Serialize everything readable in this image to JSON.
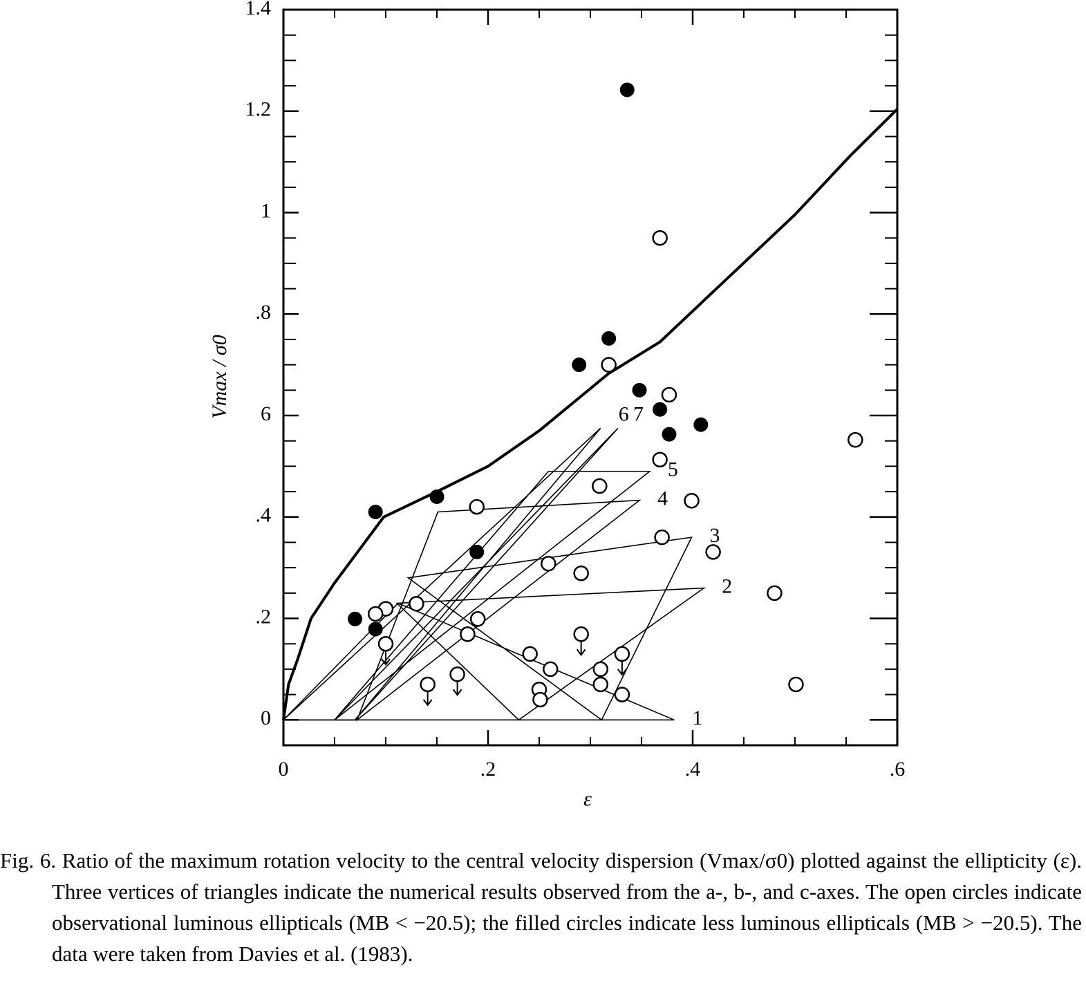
{
  "chart_data": {
    "type": "scatter",
    "xlabel": "ε",
    "ylabel": "Vmax / σ0",
    "xlim": [
      0,
      0.6
    ],
    "ylim": [
      -0.05,
      1.4
    ],
    "xticks": [
      0,
      {
        "value": 0.2,
        "label": ".2"
      },
      {
        "value": 0.4,
        "label": ".4"
      },
      {
        "value": 0.6,
        "label": ".6"
      }
    ],
    "yticks": [
      0,
      {
        "value": 0.2,
        "label": ".2"
      },
      {
        "value": 0.4,
        "label": ".4"
      },
      {
        "value": 0.6,
        "label": "6"
      },
      {
        "value": 0.8,
        "label": ".8"
      },
      1,
      1.2,
      1.4
    ],
    "xminorticks": [
      0.05,
      0.1,
      0.15,
      0.25,
      0.3,
      0.35,
      0.45,
      0.5,
      0.55
    ],
    "yminorticks": [
      0.05,
      0.1,
      0.15,
      0.25,
      0.3,
      0.35,
      0.45,
      0.5,
      0.55,
      0.65,
      0.7,
      0.75,
      0.85,
      0.9,
      0.95,
      1.05,
      1.1,
      1.15,
      1.25,
      1.3,
      1.35
    ],
    "series": [
      {
        "name": "less luminous ellipticals",
        "marker": "filled",
        "color": "#000000",
        "x": [
          0.336,
          0.318,
          0.289,
          0.348,
          0.368,
          0.377,
          0.408,
          0.15,
          0.09,
          0.189,
          0.07,
          0.09
        ],
        "values": [
          1.242,
          0.752,
          0.7,
          0.65,
          0.612,
          0.563,
          0.582,
          0.44,
          0.41,
          0.331,
          0.199,
          0.179
        ]
      },
      {
        "name": "luminous ellipticals",
        "marker": "open",
        "color": "#000000",
        "x": [
          0.368,
          0.318,
          0.377,
          0.559,
          0.368,
          0.309,
          0.399,
          0.189,
          0.37,
          0.42,
          0.259,
          0.291,
          0.48,
          0.13,
          0.1,
          0.09,
          0.19,
          0.18,
          0.241,
          0.261,
          0.31,
          0.31,
          0.331,
          0.25,
          0.251,
          0.501
        ],
        "values": [
          0.95,
          0.7,
          0.641,
          0.552,
          0.513,
          0.461,
          0.432,
          0.42,
          0.36,
          0.331,
          0.308,
          0.289,
          0.25,
          0.229,
          0.219,
          0.209,
          0.199,
          0.169,
          0.13,
          0.1,
          0.1,
          0.07,
          0.05,
          0.06,
          0.04,
          0.07
        ]
      },
      {
        "name": "luminous ellipticals upper limits",
        "marker": "open-limit",
        "color": "#000000",
        "x": [
          0.1,
          0.291,
          0.331,
          0.141,
          0.17
        ],
        "values": [
          0.15,
          0.169,
          0.13,
          0.07,
          0.09
        ]
      }
    ],
    "curve": {
      "x": [
        0,
        0.005,
        0.014,
        0.027,
        0.05,
        0.098,
        0.15,
        0.2,
        0.25,
        0.318,
        0.368,
        0.439,
        0.5,
        0.554,
        0.6
      ],
      "values": [
        0,
        0.07,
        0.12,
        0.2,
        0.27,
        0.4,
        0.45,
        0.5,
        0.57,
        0.683,
        0.745,
        0.88,
        0.996,
        1.112,
        1.204
      ]
    },
    "triangles": [
      {
        "label": "1",
        "x": [
          0,
          0.112,
          0.382
        ],
        "values": [
          0,
          0.23,
          0
        ]
      },
      {
        "label": "2",
        "x": [
          0.111,
          0.411,
          0.23
        ],
        "values": [
          0.23,
          0.26,
          0
        ]
      },
      {
        "label": "3",
        "x": [
          0.122,
          0.399,
          0.311
        ],
        "values": [
          0.28,
          0.36,
          0
        ]
      },
      {
        "label": "4",
        "x": [
          0.151,
          0.348,
          0.072
        ],
        "values": [
          0.41,
          0.433,
          0
        ]
      },
      {
        "label": "5",
        "x": [
          0.259,
          0.358,
          0.05
        ],
        "values": [
          0.49,
          0.49,
          0
        ]
      },
      {
        "label": "6",
        "x": [
          0,
          0.07,
          0.31
        ],
        "values": [
          0,
          0,
          0.575
        ]
      },
      {
        "label": "7",
        "x": [
          0.05,
          0.07,
          0.327
        ],
        "values": [
          0,
          0,
          0.575
        ]
      }
    ],
    "caption": "Fig. 6.  Ratio of the maximum rotation velocity to the central velocity dispersion (Vmax/σ0) plotted against the ellipticity (ε). Three vertices of triangles indicate the numerical results observed from the a-, b-, and c-axes. The open circles indicate observational luminous ellipticals (MB < −20.5); the filled circles indicate less luminous ellipticals (MB > −20.5). The data were taken from Davies et al. (1983)."
  }
}
